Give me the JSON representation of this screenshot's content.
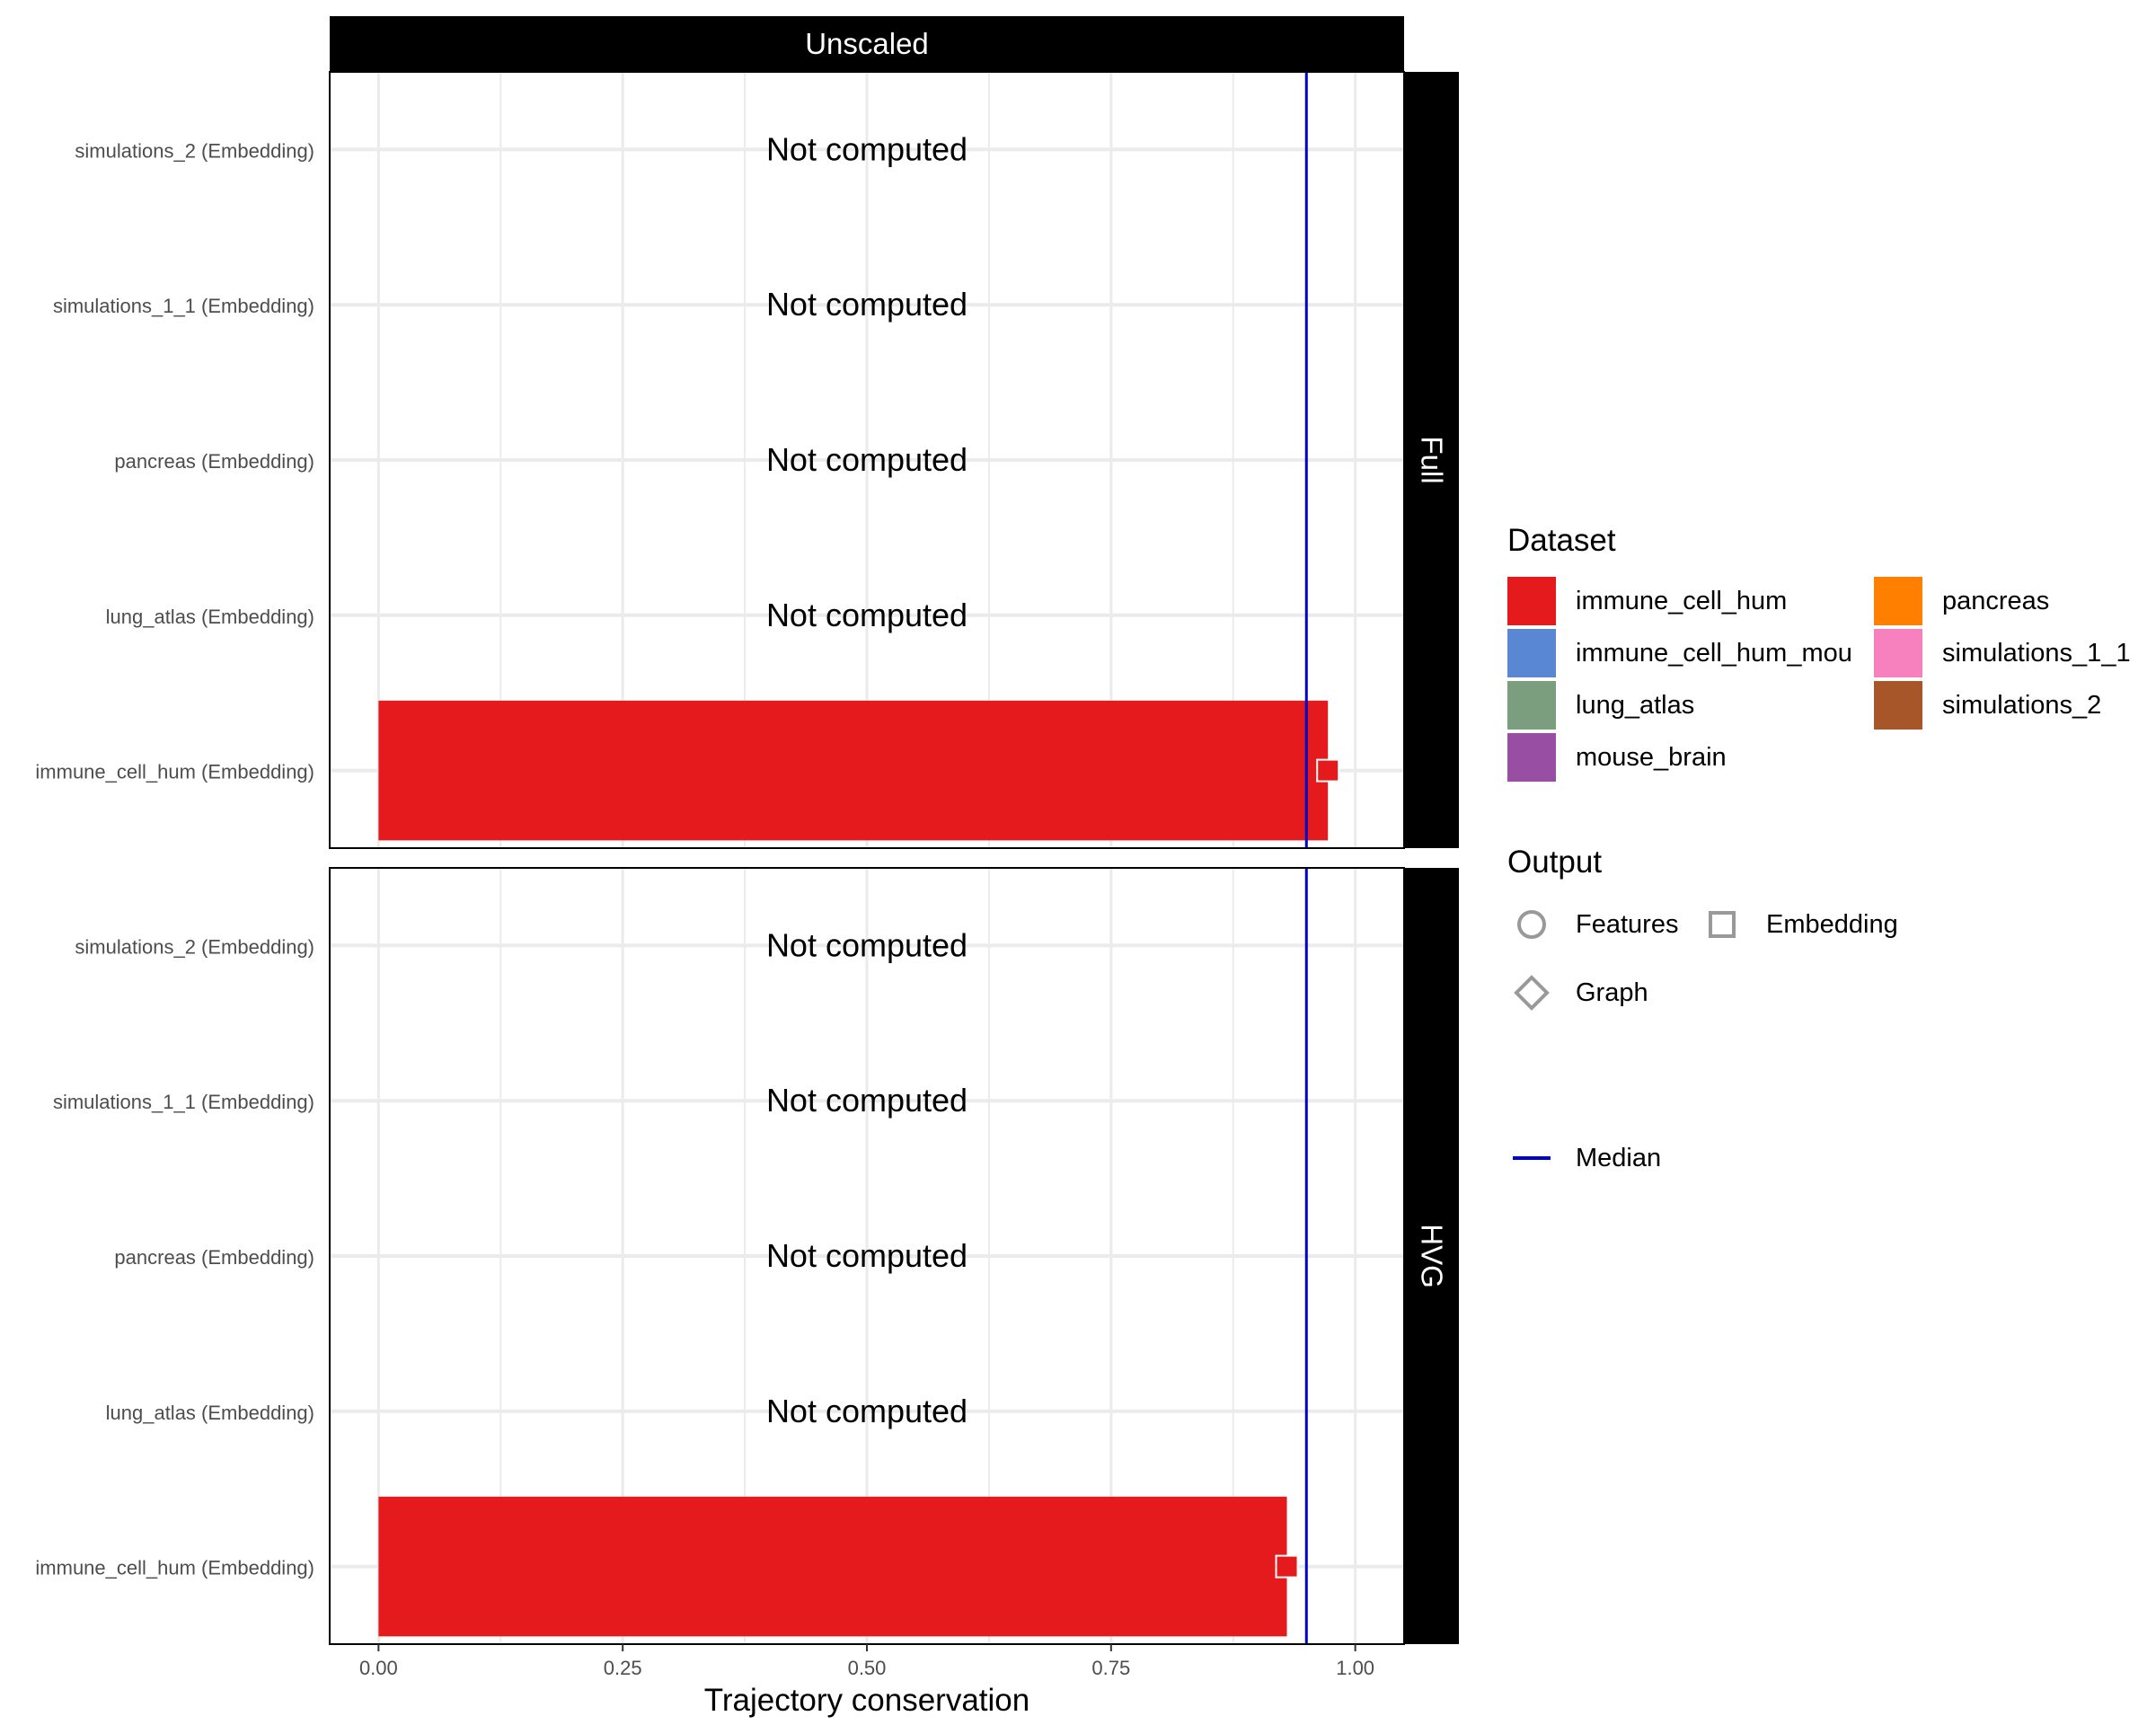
{
  "chart_data": {
    "type": "bar",
    "column_strip": "Unscaled",
    "xlabel": "Trajectory conservation",
    "xlim": [
      -0.05,
      1.05
    ],
    "x_ticks": [
      "0.00",
      "0.25",
      "0.50",
      "0.75",
      "1.00"
    ],
    "x_tick_values": [
      0,
      0.25,
      0.5,
      0.75,
      1.0
    ],
    "grid": true,
    "legend_position": "right",
    "not_computed_label": "Not computed",
    "panels": [
      {
        "strip": "Full",
        "median": 0.95,
        "rows": [
          {
            "label": "simulations_2 (Embedding)",
            "value": null,
            "dataset": "simulations_2"
          },
          {
            "label": "simulations_1_1 (Embedding)",
            "value": null,
            "dataset": "simulations_1_1"
          },
          {
            "label": "pancreas (Embedding)",
            "value": null,
            "dataset": "pancreas"
          },
          {
            "label": "lung_atlas (Embedding)",
            "value": null,
            "dataset": "lung_atlas"
          },
          {
            "label": "immune_cell_hum (Embedding)",
            "value": 0.972,
            "dataset": "immune_cell_hum",
            "output": "Embedding"
          }
        ]
      },
      {
        "strip": "HVG",
        "median": 0.95,
        "rows": [
          {
            "label": "simulations_2 (Embedding)",
            "value": null,
            "dataset": "simulations_2"
          },
          {
            "label": "simulations_1_1 (Embedding)",
            "value": null,
            "dataset": "simulations_1_1"
          },
          {
            "label": "pancreas (Embedding)",
            "value": null,
            "dataset": "pancreas"
          },
          {
            "label": "lung_atlas (Embedding)",
            "value": null,
            "dataset": "lung_atlas"
          },
          {
            "label": "immune_cell_hum (Embedding)",
            "value": 0.93,
            "dataset": "immune_cell_hum",
            "output": "Embedding"
          }
        ]
      }
    ]
  },
  "legend": {
    "dataset_title": "Dataset",
    "datasets": [
      {
        "name": "immune_cell_hum",
        "color": "#E41A1C"
      },
      {
        "name": "immune_cell_hum_mou",
        "color": "#5A87D4"
      },
      {
        "name": "lung_atlas",
        "color": "#7A9E7E"
      },
      {
        "name": "mouse_brain",
        "color": "#984EA3"
      },
      {
        "name": "pancreas",
        "color": "#FF7F00"
      },
      {
        "name": "simulations_1_1",
        "color": "#F781BF"
      },
      {
        "name": "simulations_2",
        "color": "#A65628"
      }
    ],
    "output_title": "Output",
    "outputs": [
      {
        "name": "Features",
        "shape": "circle-icon"
      },
      {
        "name": "Embedding",
        "shape": "square-icon"
      },
      {
        "name": "Graph",
        "shape": "diamond-icon"
      }
    ],
    "median_label": "Median",
    "median_color": "#0000CC"
  }
}
